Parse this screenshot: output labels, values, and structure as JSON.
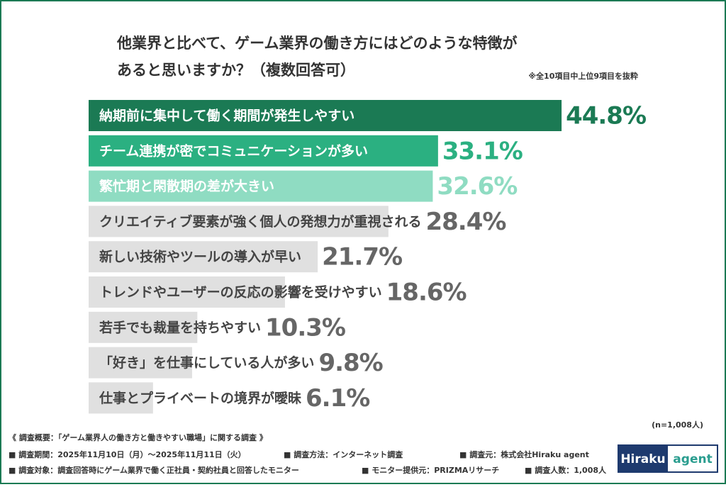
{
  "chart_data": {
    "type": "bar",
    "title": [
      "他業界と比べて、ゲーム業界の働き方にはどのような特徴が",
      "あると思いますか？（複数回答可）"
    ],
    "note": "※全10項目中上位9項目を抜粋",
    "categories": [
      "納期前に集中して働く期間が発生しやすい",
      "チーム連携が密でコミュニケーションが多い",
      "繁忙期と閑散期の差が大きい",
      "クリエイティブ要素が強く個人の発想力が重視される",
      "新しい技術やツールの導入が早い",
      "トレンドやユーザーの反応の影響を受けやすい",
      "若手でも裁量を持ちやすい",
      "「好き」を仕事にしている人が多い",
      "仕事とプライベートの境界が曖昧"
    ],
    "values": [
      44.8,
      33.1,
      32.6,
      28.4,
      21.7,
      18.6,
      10.3,
      9.8,
      6.1
    ],
    "value_labels": [
      "44.8%",
      "33.1%",
      "32.6%",
      "28.4%",
      "21.7%",
      "18.6%",
      "10.3%",
      "9.8%",
      "6.1%"
    ],
    "colors": [
      "#1b7a54",
      "#2bb081",
      "#8fdcc2",
      "#e0e0e0",
      "#e0e0e0",
      "#e0e0e0",
      "#e0e0e0",
      "#e0e0e0",
      "#e0e0e0"
    ],
    "sample": "(n=1,008人)"
  },
  "footer": {
    "heading": "《 調査概要：「ゲーム業界人の働き方と働きやすい職場」に関する調査 》",
    "rows": [
      [
        "■ 調査期間：2025年11月10日（月）〜2025年11月11日（火）",
        "■ 調査方法：インターネット調査",
        "■ 調査元：株式会社Hiraku agent"
      ],
      [
        "■ 調査対象：調査回答時にゲーム業界で働く正社員・契約社員と回答したモニター",
        "■ モニター提供元：PRIZMAリサーチ",
        "■ 調査人数：1,008人"
      ]
    ]
  },
  "logo": {
    "left": "Hiraku",
    "right": "agent"
  }
}
